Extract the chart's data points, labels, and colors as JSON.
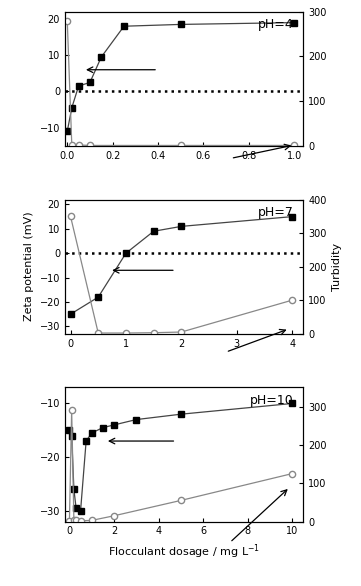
{
  "ph4": {
    "zeta_x": [
      0,
      0.02,
      0.05,
      0.1,
      0.15,
      0.25,
      0.5,
      1.0
    ],
    "zeta_y": [
      -11,
      -4.5,
      1.5,
      2.5,
      9.5,
      18,
      18.5,
      19
    ],
    "turb_x": [
      0,
      0.02,
      0.05,
      0.1,
      0.5,
      1.0
    ],
    "turb_y": [
      280,
      3,
      2,
      1,
      1,
      1
    ],
    "ylim_zeta": [
      -15,
      22
    ],
    "ylim_turb": [
      0,
      300
    ],
    "yticks_zeta": [
      -10,
      0,
      10,
      20
    ],
    "yticks_turb": [
      0,
      100,
      200,
      300
    ],
    "xlim": [
      -0.01,
      1.04
    ],
    "xticks": [
      0.0,
      0.2,
      0.4,
      0.6,
      0.8,
      1.0
    ],
    "label": "pH=4"
  },
  "ph7": {
    "zeta_x": [
      0,
      0.5,
      1.0,
      1.5,
      2.0,
      4.0
    ],
    "zeta_y": [
      -25,
      -18,
      0,
      9,
      11,
      15
    ],
    "turb_x": [
      0,
      0.5,
      1.0,
      1.5,
      2.0,
      4.0
    ],
    "turb_y": [
      350,
      2,
      2,
      3,
      5,
      100
    ],
    "ylim_zeta": [
      -33,
      22
    ],
    "ylim_turb": [
      0,
      400
    ],
    "yticks_zeta": [
      -30,
      -20,
      -10,
      0,
      10,
      20
    ],
    "yticks_turb": [
      0,
      100,
      200,
      300,
      400
    ],
    "xlim": [
      -0.1,
      4.2
    ],
    "xticks": [
      0,
      1,
      2,
      3,
      4
    ],
    "label": "pH=7"
  },
  "ph10": {
    "zeta_x": [
      0,
      0.1,
      0.2,
      0.3,
      0.5,
      0.75,
      1.0,
      1.5,
      2.0,
      3.0,
      5.0,
      10.0
    ],
    "zeta_y": [
      -15,
      -16,
      -26,
      -29.5,
      -30,
      -17,
      -15.5,
      -14.5,
      -14,
      -13,
      -12,
      -10
    ],
    "turb_x": [
      0,
      0.1,
      0.2,
      0.3,
      0.5,
      1.0,
      2.0,
      5.0,
      10.0
    ],
    "turb_y": [
      2,
      290,
      5,
      3,
      2,
      3,
      15,
      55,
      125
    ],
    "ylim_zeta": [
      -32,
      -7
    ],
    "ylim_turb": [
      0,
      350
    ],
    "yticks_zeta": [
      -30,
      -20,
      -10
    ],
    "yticks_turb": [
      0,
      100,
      200,
      300
    ],
    "xlim": [
      -0.2,
      10.5
    ],
    "xticks": [
      0,
      2,
      4,
      6,
      8,
      10
    ],
    "label": "pH=10"
  },
  "zeta_color": "#444444",
  "turb_color": "#888888",
  "xlabel": "Flocculant dosage / mg L$^{-1}$",
  "ylabel_left": "Zeta potential (mV)",
  "ylabel_right": "Turbidity"
}
